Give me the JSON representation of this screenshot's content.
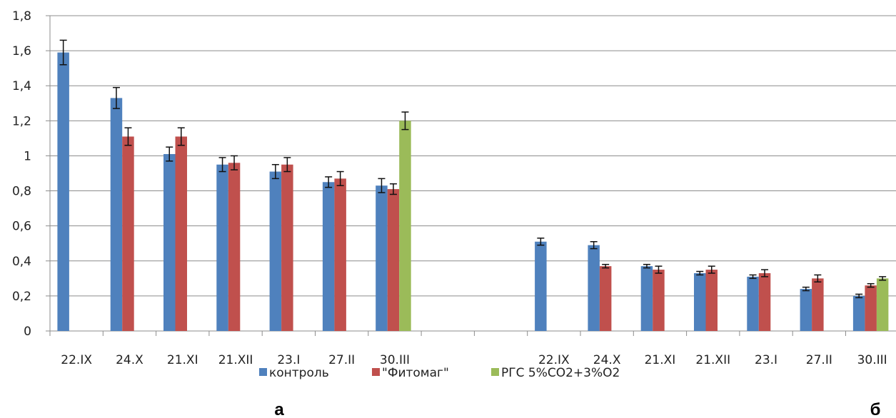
{
  "chart_data": {
    "type": "bar",
    "ylim": [
      0,
      1.8
    ],
    "yticks": [
      "0",
      "0,2",
      "0,4",
      "0,6",
      "0,8",
      "1",
      "1,2",
      "1,4",
      "1,6",
      "1,8"
    ],
    "grid": true,
    "legend_position": "bottom",
    "colors": {
      "контроль": "#4F81BD",
      "\"Фитомаг\"": "#C0504D",
      "РГС 5%CO2+3%O2": "#9BBB59"
    },
    "legend": [
      "контроль",
      "\"Фитомаг\"",
      "РГС 5%CO2+3%O2"
    ],
    "panels": [
      {
        "label": "а",
        "categories": [
          "22.IX",
          "24.X",
          "21.XI",
          "21.XII",
          "23.I",
          "27.II",
          "30.III"
        ],
        "series": [
          {
            "name": "контроль",
            "values": [
              1.59,
              1.33,
              1.01,
              0.95,
              0.91,
              0.85,
              0.83
            ],
            "errors": [
              0.07,
              0.06,
              0.04,
              0.04,
              0.04,
              0.03,
              0.04
            ]
          },
          {
            "name": "\"Фитомаг\"",
            "values": [
              null,
              1.11,
              1.11,
              0.96,
              0.95,
              0.87,
              0.81
            ],
            "errors": [
              null,
              0.05,
              0.05,
              0.04,
              0.04,
              0.04,
              0.03
            ]
          },
          {
            "name": "РГС 5%CO2+3%O2",
            "values": [
              null,
              null,
              null,
              null,
              null,
              null,
              1.2
            ],
            "errors": [
              null,
              null,
              null,
              null,
              null,
              null,
              0.05
            ]
          }
        ]
      },
      {
        "label": "б",
        "categories": [
          "22.IX",
          "24.X",
          "21.XI",
          "21.XII",
          "23.I",
          "27.II",
          "30.III"
        ],
        "series": [
          {
            "name": "контроль",
            "values": [
              0.51,
              0.49,
              0.37,
              0.33,
              0.31,
              0.24,
              0.2
            ],
            "errors": [
              0.02,
              0.02,
              0.01,
              0.01,
              0.01,
              0.01,
              0.01
            ]
          },
          {
            "name": "\"Фитомаг\"",
            "values": [
              null,
              0.37,
              0.35,
              0.35,
              0.33,
              0.3,
              0.26
            ],
            "errors": [
              null,
              0.01,
              0.02,
              0.02,
              0.02,
              0.02,
              0.01
            ]
          },
          {
            "name": "РГС 5%CO2+3%O2",
            "values": [
              null,
              null,
              null,
              null,
              null,
              null,
              0.3
            ],
            "errors": [
              null,
              null,
              null,
              null,
              null,
              null,
              0.01
            ]
          }
        ]
      }
    ]
  }
}
